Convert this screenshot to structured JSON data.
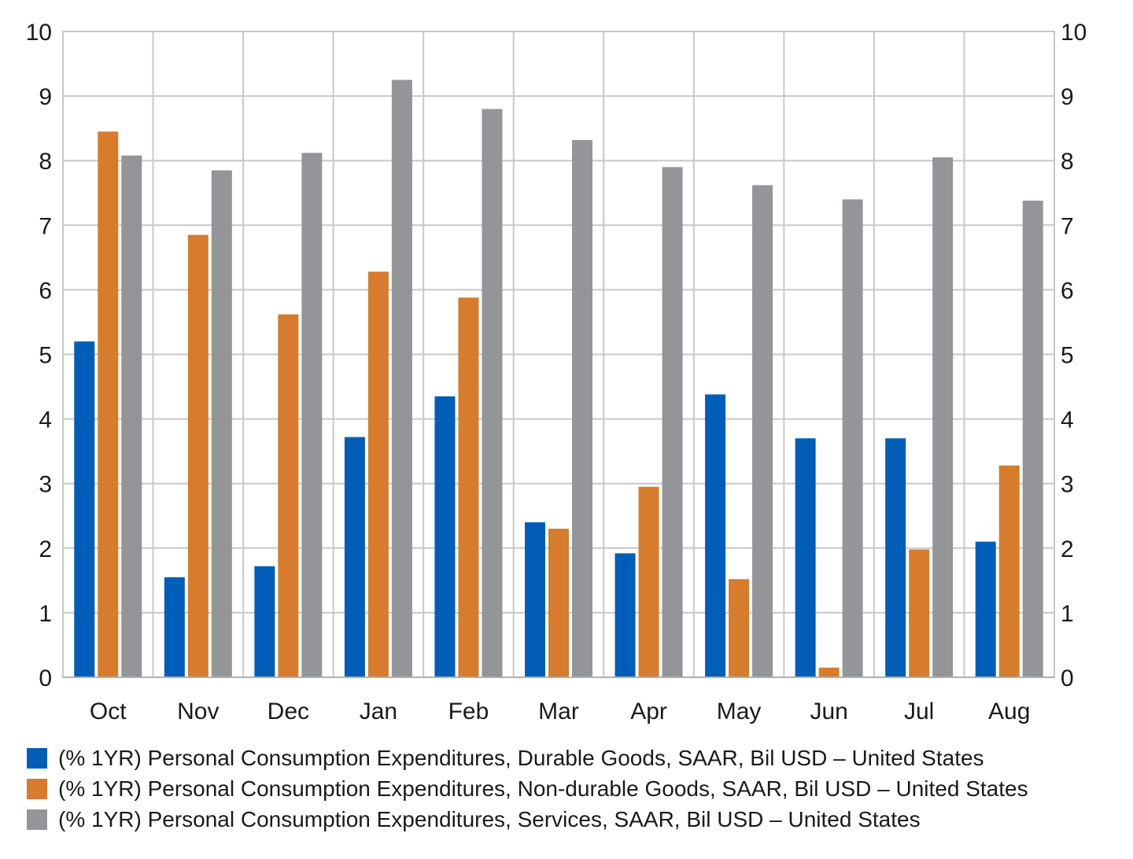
{
  "chart_data": {
    "type": "bar",
    "categories": [
      "Oct",
      "Nov",
      "Dec",
      "Jan",
      "Feb",
      "Mar",
      "Apr",
      "May",
      "Jun",
      "Jul",
      "Aug"
    ],
    "series": [
      {
        "name": "(% 1YR) Personal Consumption Expenditures, Durable Goods, SAAR, Bil USD – United States",
        "color": "#005eb8",
        "values": [
          5.2,
          1.55,
          1.72,
          3.72,
          4.35,
          2.4,
          1.92,
          4.38,
          3.7,
          3.7,
          2.1
        ]
      },
      {
        "name": "(% 1YR) Personal Consumption Expenditures, Non-durable Goods, SAAR, Bil USD – United States",
        "color": "#d67c2c",
        "values": [
          8.45,
          6.85,
          5.62,
          6.28,
          5.88,
          2.3,
          2.95,
          1.52,
          0.15,
          1.98,
          3.28
        ]
      },
      {
        "name": "(% 1YR) Personal Consumption Expenditures, Services, SAAR, Bil USD – United States",
        "color": "#939598",
        "values": [
          8.08,
          7.85,
          8.12,
          9.25,
          8.8,
          8.32,
          7.9,
          7.62,
          7.4,
          8.05,
          7.38
        ]
      }
    ],
    "ylim": [
      0,
      10
    ],
    "yticks": [
      "0",
      "1",
      "2",
      "3",
      "4",
      "5",
      "6",
      "7",
      "8",
      "9",
      "10"
    ],
    "grid": true,
    "legend_position": "bottom",
    "dual_axis_labels": true
  }
}
